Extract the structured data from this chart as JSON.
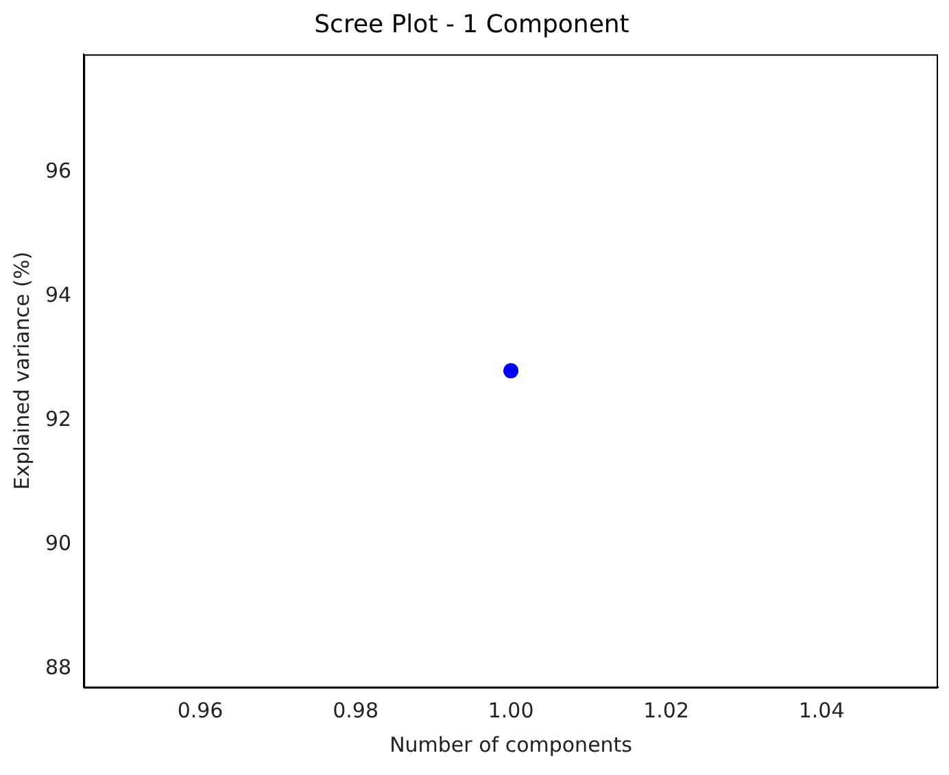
{
  "chart_data": {
    "type": "scatter",
    "title": "Scree Plot - 1 Component",
    "xlabel": "Number of components",
    "ylabel": "Explained variance (%)",
    "x": [
      1.0
    ],
    "series": [
      {
        "color": "#0000ff",
        "values": [
          92.8
        ]
      }
    ],
    "marker": "circle",
    "xlim": [
      0.945,
      1.055
    ],
    "ylim": [
      87.7,
      97.9
    ],
    "xticks": [
      {
        "value": 0.96,
        "label": "0.96"
      },
      {
        "value": 0.98,
        "label": "0.98"
      },
      {
        "value": 1.0,
        "label": "1.00"
      },
      {
        "value": 1.02,
        "label": "1.02"
      },
      {
        "value": 1.04,
        "label": "1.04"
      }
    ],
    "yticks": [
      88,
      90,
      92,
      94,
      96
    ],
    "grid": false,
    "legend": false
  }
}
